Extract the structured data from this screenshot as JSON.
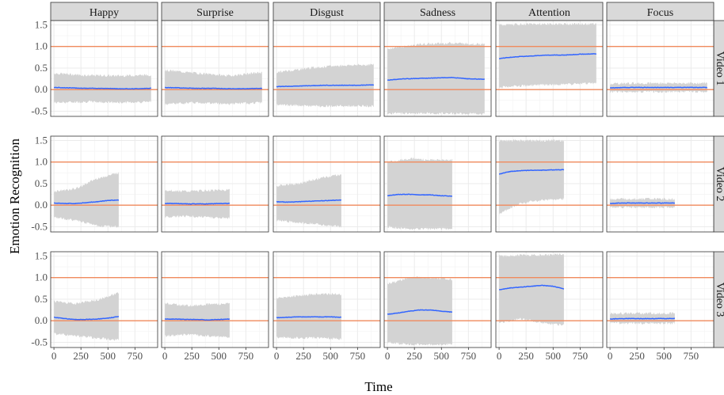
{
  "chart_data": {
    "type": "area",
    "xlabel": "Time",
    "ylabel": "Emotion Recognition",
    "xlim": [
      -30,
      960
    ],
    "ylim": [
      -0.62,
      1.6
    ],
    "x_ticks": [
      0,
      250,
      500,
      750
    ],
    "x_tick_labels": [
      "0",
      "250",
      "500",
      "750"
    ],
    "y_ticks": [
      -0.5,
      0.0,
      0.5,
      1.0,
      1.5
    ],
    "y_tick_labels": [
      "-0.5",
      "0.0",
      "0.5",
      "1.0",
      "1.5"
    ],
    "reference_lines": [
      0.0,
      1.0
    ],
    "grid": true,
    "facet_columns": [
      "Happy",
      "Surprise",
      "Disgust",
      "Sadness",
      "Attention",
      "Focus"
    ],
    "facet_rows": [
      "Video 1",
      "Video 2",
      "Video 3"
    ],
    "colors": {
      "mean_line": "#3366ff",
      "band": "#d3d3d3",
      "reference_line": "#f08a5d",
      "strip": "#d9d9d9",
      "grid": "#ebebeb",
      "panel_border": "#333333"
    },
    "panels": [
      {
        "row": "Video 1",
        "col": "Happy",
        "x_end": 900,
        "mean": [
          [
            0,
            0.05
          ],
          [
            150,
            0.04
          ],
          [
            300,
            0.03
          ],
          [
            450,
            0.03
          ],
          [
            600,
            0.02
          ],
          [
            750,
            0.02
          ],
          [
            900,
            0.03
          ]
        ],
        "lower": [
          [
            0,
            -0.3
          ],
          [
            300,
            -0.28
          ],
          [
            600,
            -0.3
          ],
          [
            900,
            -0.28
          ]
        ],
        "upper": [
          [
            0,
            0.38
          ],
          [
            300,
            0.33
          ],
          [
            600,
            0.32
          ],
          [
            900,
            0.34
          ]
        ]
      },
      {
        "row": "Video 1",
        "col": "Surprise",
        "x_end": 900,
        "mean": [
          [
            0,
            0.05
          ],
          [
            150,
            0.04
          ],
          [
            300,
            0.03
          ],
          [
            450,
            0.03
          ],
          [
            600,
            0.02
          ],
          [
            750,
            0.02
          ],
          [
            900,
            0.03
          ]
        ],
        "lower": [
          [
            0,
            -0.33
          ],
          [
            300,
            -0.3
          ],
          [
            600,
            -0.33
          ],
          [
            900,
            -0.3
          ]
        ],
        "upper": [
          [
            0,
            0.45
          ],
          [
            300,
            0.38
          ],
          [
            600,
            0.32
          ],
          [
            900,
            0.4
          ]
        ]
      },
      {
        "row": "Video 1",
        "col": "Disgust",
        "x_end": 900,
        "mean": [
          [
            0,
            0.07
          ],
          [
            150,
            0.08
          ],
          [
            300,
            0.09
          ],
          [
            450,
            0.1
          ],
          [
            600,
            0.1
          ],
          [
            750,
            0.1
          ],
          [
            900,
            0.11
          ]
        ],
        "lower": [
          [
            0,
            -0.35
          ],
          [
            300,
            -0.38
          ],
          [
            600,
            -0.38
          ],
          [
            900,
            -0.38
          ]
        ],
        "upper": [
          [
            0,
            0.4
          ],
          [
            300,
            0.5
          ],
          [
            600,
            0.56
          ],
          [
            900,
            0.58
          ]
        ]
      },
      {
        "row": "Video 1",
        "col": "Sadness",
        "x_end": 900,
        "mean": [
          [
            0,
            0.22
          ],
          [
            150,
            0.25
          ],
          [
            300,
            0.26
          ],
          [
            450,
            0.27
          ],
          [
            600,
            0.28
          ],
          [
            750,
            0.25
          ],
          [
            900,
            0.24
          ]
        ],
        "lower": [
          [
            0,
            -0.55
          ],
          [
            300,
            -0.55
          ],
          [
            600,
            -0.55
          ],
          [
            900,
            -0.56
          ]
        ],
        "upper": [
          [
            0,
            0.95
          ],
          [
            300,
            1.05
          ],
          [
            600,
            1.08
          ],
          [
            900,
            1.05
          ]
        ]
      },
      {
        "row": "Video 1",
        "col": "Attention",
        "x_end": 900,
        "mean": [
          [
            0,
            0.72
          ],
          [
            150,
            0.76
          ],
          [
            300,
            0.78
          ],
          [
            450,
            0.8
          ],
          [
            600,
            0.8
          ],
          [
            750,
            0.82
          ],
          [
            900,
            0.83
          ]
        ],
        "lower": [
          [
            0,
            0.05
          ],
          [
            300,
            0.1
          ],
          [
            600,
            0.12
          ],
          [
            900,
            0.15
          ]
        ],
        "upper": [
          [
            0,
            1.5
          ],
          [
            300,
            1.52
          ],
          [
            600,
            1.52
          ],
          [
            900,
            1.52
          ]
        ]
      },
      {
        "row": "Video 1",
        "col": "Focus",
        "x_end": 900,
        "mean": [
          [
            0,
            0.04
          ],
          [
            150,
            0.05
          ],
          [
            300,
            0.05
          ],
          [
            450,
            0.05
          ],
          [
            600,
            0.05
          ],
          [
            750,
            0.05
          ],
          [
            900,
            0.05
          ]
        ],
        "lower": [
          [
            0,
            -0.05
          ],
          [
            300,
            -0.05
          ],
          [
            600,
            -0.05
          ],
          [
            900,
            -0.05
          ]
        ],
        "upper": [
          [
            0,
            0.14
          ],
          [
            300,
            0.15
          ],
          [
            600,
            0.15
          ],
          [
            900,
            0.15
          ]
        ]
      },
      {
        "row": "Video 2",
        "col": "Happy",
        "x_end": 600,
        "mean": [
          [
            0,
            0.05
          ],
          [
            100,
            0.04
          ],
          [
            200,
            0.04
          ],
          [
            300,
            0.06
          ],
          [
            400,
            0.08
          ],
          [
            500,
            0.11
          ],
          [
            600,
            0.12
          ]
        ],
        "lower": [
          [
            0,
            -0.28
          ],
          [
            200,
            -0.35
          ],
          [
            400,
            -0.48
          ],
          [
            600,
            -0.5
          ]
        ],
        "upper": [
          [
            0,
            0.32
          ],
          [
            200,
            0.38
          ],
          [
            400,
            0.62
          ],
          [
            600,
            0.75
          ]
        ]
      },
      {
        "row": "Video 2",
        "col": "Surprise",
        "x_end": 600,
        "mean": [
          [
            0,
            0.04
          ],
          [
            100,
            0.04
          ],
          [
            200,
            0.03
          ],
          [
            300,
            0.03
          ],
          [
            400,
            0.03
          ],
          [
            500,
            0.04
          ],
          [
            600,
            0.04
          ]
        ],
        "lower": [
          [
            0,
            -0.28
          ],
          [
            200,
            -0.25
          ],
          [
            400,
            -0.28
          ],
          [
            600,
            -0.3
          ]
        ],
        "upper": [
          [
            0,
            0.35
          ],
          [
            200,
            0.32
          ],
          [
            400,
            0.34
          ],
          [
            600,
            0.36
          ]
        ]
      },
      {
        "row": "Video 2",
        "col": "Disgust",
        "x_end": 600,
        "mean": [
          [
            0,
            0.08
          ],
          [
            100,
            0.07
          ],
          [
            200,
            0.08
          ],
          [
            300,
            0.09
          ],
          [
            400,
            0.1
          ],
          [
            500,
            0.11
          ],
          [
            600,
            0.12
          ]
        ],
        "lower": [
          [
            0,
            -0.35
          ],
          [
            200,
            -0.4
          ],
          [
            400,
            -0.45
          ],
          [
            600,
            -0.5
          ]
        ],
        "upper": [
          [
            0,
            0.45
          ],
          [
            200,
            0.5
          ],
          [
            400,
            0.62
          ],
          [
            600,
            0.72
          ]
        ]
      },
      {
        "row": "Video 2",
        "col": "Sadness",
        "x_end": 600,
        "mean": [
          [
            0,
            0.22
          ],
          [
            100,
            0.25
          ],
          [
            200,
            0.25
          ],
          [
            300,
            0.24
          ],
          [
            400,
            0.24
          ],
          [
            500,
            0.22
          ],
          [
            600,
            0.21
          ]
        ],
        "lower": [
          [
            0,
            -0.5
          ],
          [
            200,
            -0.55
          ],
          [
            400,
            -0.55
          ],
          [
            600,
            -0.55
          ]
        ],
        "upper": [
          [
            0,
            1.0
          ],
          [
            200,
            1.08
          ],
          [
            400,
            1.05
          ],
          [
            600,
            1.05
          ]
        ]
      },
      {
        "row": "Video 2",
        "col": "Attention",
        "x_end": 600,
        "mean": [
          [
            0,
            0.72
          ],
          [
            100,
            0.78
          ],
          [
            200,
            0.8
          ],
          [
            300,
            0.81
          ],
          [
            400,
            0.81
          ],
          [
            500,
            0.82
          ],
          [
            600,
            0.82
          ]
        ],
        "lower": [
          [
            0,
            -0.2
          ],
          [
            200,
            0.05
          ],
          [
            400,
            0.12
          ],
          [
            600,
            0.15
          ]
        ],
        "upper": [
          [
            0,
            1.5
          ],
          [
            200,
            1.5
          ],
          [
            400,
            1.5
          ],
          [
            600,
            1.5
          ]
        ]
      },
      {
        "row": "Video 2",
        "col": "Focus",
        "x_end": 600,
        "mean": [
          [
            0,
            0.04
          ],
          [
            100,
            0.05
          ],
          [
            200,
            0.05
          ],
          [
            300,
            0.05
          ],
          [
            400,
            0.05
          ],
          [
            500,
            0.05
          ],
          [
            600,
            0.05
          ]
        ],
        "lower": [
          [
            0,
            -0.05
          ],
          [
            300,
            -0.05
          ],
          [
            600,
            -0.05
          ]
        ],
        "upper": [
          [
            0,
            0.14
          ],
          [
            300,
            0.15
          ],
          [
            600,
            0.14
          ]
        ]
      },
      {
        "row": "Video 3",
        "col": "Happy",
        "x_end": 600,
        "mean": [
          [
            0,
            0.08
          ],
          [
            100,
            0.05
          ],
          [
            200,
            0.03
          ],
          [
            300,
            0.03
          ],
          [
            400,
            0.04
          ],
          [
            500,
            0.06
          ],
          [
            600,
            0.1
          ]
        ],
        "lower": [
          [
            0,
            -0.3
          ],
          [
            200,
            -0.35
          ],
          [
            400,
            -0.4
          ],
          [
            600,
            -0.45
          ]
        ],
        "upper": [
          [
            0,
            0.45
          ],
          [
            200,
            0.4
          ],
          [
            400,
            0.48
          ],
          [
            600,
            0.65
          ]
        ]
      },
      {
        "row": "Video 3",
        "col": "Surprise",
        "x_end": 600,
        "mean": [
          [
            0,
            0.04
          ],
          [
            100,
            0.04
          ],
          [
            200,
            0.03
          ],
          [
            300,
            0.03
          ],
          [
            400,
            0.02
          ],
          [
            500,
            0.03
          ],
          [
            600,
            0.04
          ]
        ],
        "lower": [
          [
            0,
            -0.35
          ],
          [
            200,
            -0.32
          ],
          [
            400,
            -0.35
          ],
          [
            600,
            -0.38
          ]
        ],
        "upper": [
          [
            0,
            0.4
          ],
          [
            200,
            0.35
          ],
          [
            400,
            0.38
          ],
          [
            600,
            0.4
          ]
        ]
      },
      {
        "row": "Video 3",
        "col": "Disgust",
        "x_end": 600,
        "mean": [
          [
            0,
            0.07
          ],
          [
            100,
            0.08
          ],
          [
            200,
            0.09
          ],
          [
            300,
            0.09
          ],
          [
            400,
            0.09
          ],
          [
            500,
            0.09
          ],
          [
            600,
            0.08
          ]
        ],
        "lower": [
          [
            0,
            -0.38
          ],
          [
            200,
            -0.4
          ],
          [
            400,
            -0.4
          ],
          [
            600,
            -0.42
          ]
        ],
        "upper": [
          [
            0,
            0.52
          ],
          [
            200,
            0.58
          ],
          [
            400,
            0.62
          ],
          [
            600,
            0.62
          ]
        ]
      },
      {
        "row": "Video 3",
        "col": "Sadness",
        "x_end": 600,
        "mean": [
          [
            0,
            0.15
          ],
          [
            100,
            0.18
          ],
          [
            200,
            0.22
          ],
          [
            300,
            0.25
          ],
          [
            400,
            0.25
          ],
          [
            500,
            0.22
          ],
          [
            600,
            0.2
          ]
        ],
        "lower": [
          [
            0,
            -0.5
          ],
          [
            200,
            -0.55
          ],
          [
            400,
            -0.55
          ],
          [
            600,
            -0.55
          ]
        ],
        "upper": [
          [
            0,
            0.85
          ],
          [
            200,
            1.0
          ],
          [
            400,
            1.0
          ],
          [
            600,
            0.95
          ]
        ]
      },
      {
        "row": "Video 3",
        "col": "Attention",
        "x_end": 600,
        "mean": [
          [
            0,
            0.72
          ],
          [
            100,
            0.76
          ],
          [
            200,
            0.78
          ],
          [
            300,
            0.8
          ],
          [
            400,
            0.82
          ],
          [
            500,
            0.8
          ],
          [
            600,
            0.74
          ]
        ],
        "lower": [
          [
            0,
            -0.05
          ],
          [
            200,
            0.05
          ],
          [
            400,
            -0.05
          ],
          [
            600,
            -0.1
          ]
        ],
        "upper": [
          [
            0,
            1.5
          ],
          [
            200,
            1.52
          ],
          [
            400,
            1.52
          ],
          [
            600,
            1.55
          ]
        ]
      },
      {
        "row": "Video 3",
        "col": "Focus",
        "x_end": 600,
        "mean": [
          [
            0,
            0.04
          ],
          [
            100,
            0.05
          ],
          [
            200,
            0.05
          ],
          [
            300,
            0.05
          ],
          [
            400,
            0.05
          ],
          [
            500,
            0.05
          ],
          [
            600,
            0.05
          ]
        ],
        "lower": [
          [
            0,
            -0.05
          ],
          [
            300,
            -0.06
          ],
          [
            600,
            -0.06
          ]
        ],
        "upper": [
          [
            0,
            0.17
          ],
          [
            300,
            0.17
          ],
          [
            600,
            0.17
          ]
        ]
      }
    ]
  }
}
